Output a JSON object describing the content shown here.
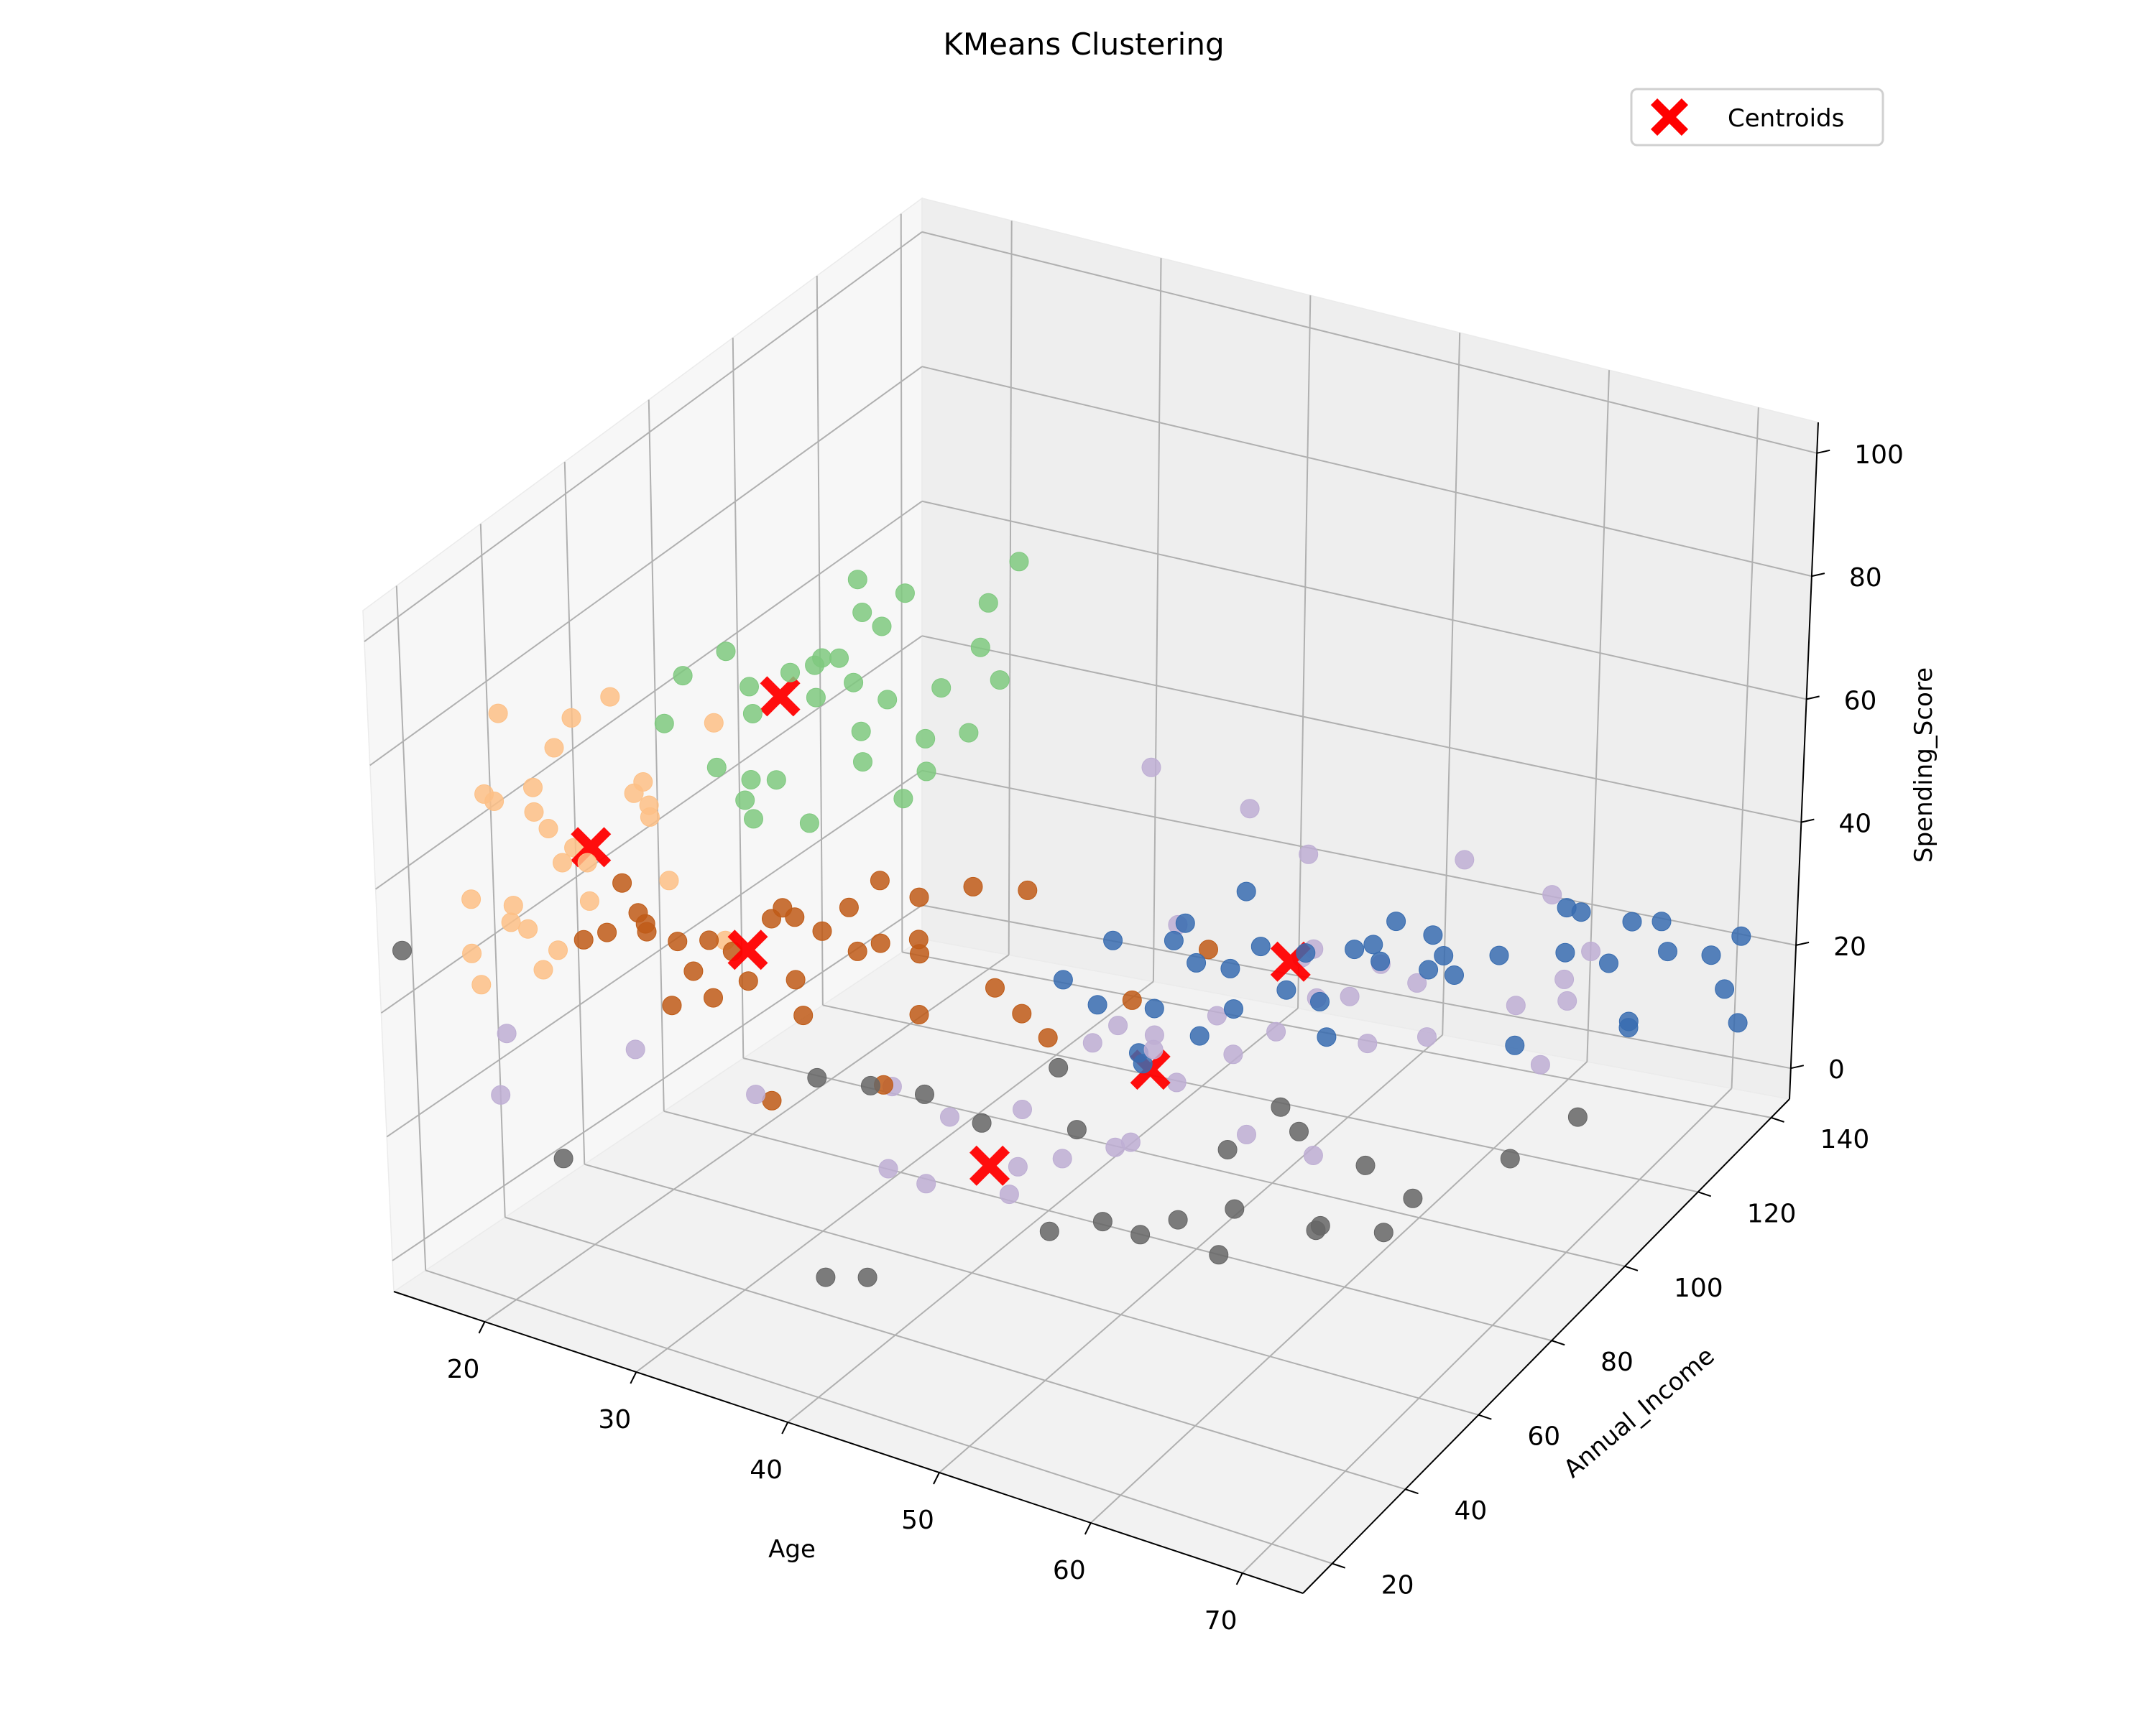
{
  "chart_data": {
    "type": "scatter",
    "title": "KMeans Clustering",
    "xlabel": "Age",
    "ylabel": "Annual_Income",
    "zlabel": "Spending_Score",
    "xlim": [
      14,
      74
    ],
    "ylim": [
      12,
      145
    ],
    "zlim": [
      -5,
      105
    ],
    "xticks": [
      "20",
      "30",
      "40",
      "50",
      "60",
      "70"
    ],
    "yticks": [
      "20",
      "40",
      "60",
      "80",
      "100",
      "120",
      "140"
    ],
    "zticks": [
      "0",
      "20",
      "40",
      "60",
      "80",
      "100"
    ],
    "grid": true,
    "legend": {
      "position": "top-right",
      "entries": [
        "Centroids"
      ]
    },
    "centroid_color": "#ff0000",
    "series": [
      {
        "color": "#7fc97f",
        "points": [
          [
            31,
            40,
            78
          ],
          [
            27,
            39,
            92
          ],
          [
            29,
            42,
            96
          ],
          [
            31,
            56,
            88
          ],
          [
            33,
            65,
            91
          ],
          [
            36,
            78,
            83
          ],
          [
            28,
            78,
            88
          ],
          [
            38,
            80,
            97
          ],
          [
            30,
            60,
            80
          ],
          [
            32,
            70,
            76
          ],
          [
            35,
            72,
            79
          ],
          [
            26,
            38,
            84
          ],
          [
            29,
            46,
            70
          ],
          [
            33,
            60,
            72
          ],
          [
            36,
            75,
            71
          ],
          [
            30,
            71,
            69
          ],
          [
            32,
            64,
            93
          ],
          [
            27,
            55,
            82
          ],
          [
            34,
            67,
            96
          ],
          [
            29,
            73,
            75
          ],
          [
            30,
            58,
            61
          ],
          [
            35,
            68,
            73
          ],
          [
            31,
            62,
            86
          ],
          [
            28,
            52,
            80
          ],
          [
            37,
            79,
            78
          ],
          [
            33,
            70,
            61
          ],
          [
            28,
            43,
            76
          ],
          [
            32,
            54,
            91
          ],
          [
            34,
            72,
            65
          ],
          [
            30,
            50,
            72
          ],
          [
            36,
            80,
            89
          ],
          [
            31,
            50,
            90
          ],
          [
            29,
            48,
            66
          ]
        ]
      },
      {
        "color": "#beaed4",
        "points": [
          [
            43,
            120,
            40
          ],
          [
            49,
            115,
            16
          ],
          [
            47,
            120,
            35
          ],
          [
            42,
            116,
            9
          ],
          [
            45,
            120,
            6
          ],
          [
            53,
            113,
            12
          ],
          [
            50,
            128,
            15
          ],
          [
            40,
            72,
            6
          ],
          [
            46,
            74,
            12
          ],
          [
            52,
            85,
            12
          ],
          [
            56,
            87,
            10
          ],
          [
            45,
            88,
            22
          ],
          [
            58,
            109,
            18
          ],
          [
            54,
            104,
            25
          ],
          [
            55,
            130,
            33
          ],
          [
            59,
            138,
            25
          ],
          [
            63,
            120,
            10
          ],
          [
            62,
            137,
            18
          ],
          [
            37,
            66,
            15
          ],
          [
            44,
            68,
            12
          ],
          [
            48,
            76,
            28
          ],
          [
            39,
            77,
            12
          ],
          [
            57,
            137,
            7
          ],
          [
            40,
            106,
            52
          ],
          [
            47,
            86,
            42
          ],
          [
            51,
            103,
            30
          ],
          [
            60,
            139,
            8
          ],
          [
            35,
            59,
            22
          ],
          [
            41,
            94,
            18
          ],
          [
            46,
            90,
            14
          ],
          [
            38,
            99,
            11
          ],
          [
            32,
            36,
            30
          ],
          [
            26,
            29,
            36
          ],
          [
            20,
            18,
            29
          ],
          [
            20,
            20,
            38
          ],
          [
            38,
            56,
            10
          ],
          [
            36,
            54,
            12
          ],
          [
            42,
            62,
            8
          ],
          [
            45,
            82,
            8
          ],
          [
            48,
            97,
            16
          ],
          [
            50,
            110,
            27
          ],
          [
            55,
            118,
            20
          ],
          [
            60,
            138,
            12
          ]
        ]
      },
      {
        "color": "#fdc086",
        "points": [
          [
            18,
            24,
            73
          ],
          [
            20,
            19,
            76
          ],
          [
            21,
            30,
            80
          ],
          [
            21,
            19,
            60
          ],
          [
            23,
            22,
            53
          ],
          [
            24,
            26,
            66
          ],
          [
            18,
            20,
            58
          ],
          [
            22,
            40,
            84
          ],
          [
            23,
            30,
            57
          ],
          [
            25,
            34,
            74
          ],
          [
            26,
            34,
            71
          ],
          [
            19,
            18,
            46
          ],
          [
            20,
            22,
            55
          ],
          [
            22,
            22,
            49
          ],
          [
            26,
            50,
            78
          ],
          [
            21,
            28,
            68
          ],
          [
            19,
            32,
            71
          ],
          [
            20,
            38,
            80
          ],
          [
            24,
            40,
            72
          ],
          [
            22,
            21,
            75
          ],
          [
            24,
            20,
            69
          ],
          [
            23,
            45,
            65
          ],
          [
            27,
            48,
            45
          ],
          [
            25,
            42,
            56
          ],
          [
            20,
            26,
            52
          ],
          [
            21,
            34,
            62
          ],
          [
            18,
            28,
            84
          ],
          [
            19,
            16,
            52
          ]
        ]
      },
      {
        "color": "#386cb0",
        "points": [
          [
            47,
            85,
            40
          ],
          [
            48,
            87,
            36
          ],
          [
            49,
            92,
            33
          ],
          [
            50,
            96,
            35
          ],
          [
            52,
            100,
            33
          ],
          [
            54,
            105,
            32
          ],
          [
            55,
            108,
            29
          ],
          [
            56,
            108,
            36
          ],
          [
            57,
            114,
            31
          ],
          [
            57,
            113,
            26
          ],
          [
            58,
            116,
            24
          ],
          [
            60,
            120,
            26
          ],
          [
            62,
            130,
            29
          ],
          [
            62,
            134,
            26
          ],
          [
            64,
            140,
            22
          ],
          [
            66,
            140,
            23
          ],
          [
            66,
            142,
            17
          ],
          [
            68,
            146,
            15
          ],
          [
            70,
            146,
            19
          ],
          [
            69,
            146,
            10
          ],
          [
            63,
            138,
            16
          ],
          [
            64,
            140,
            5
          ],
          [
            59,
            129,
            6
          ],
          [
            53,
            102,
            19
          ],
          [
            52,
            104,
            23
          ],
          [
            51,
            99,
            27
          ],
          [
            49,
            93,
            26
          ],
          [
            47,
            92,
            21
          ],
          [
            46,
            84,
            29
          ],
          [
            46,
            80,
            24
          ],
          [
            45,
            85,
            19
          ],
          [
            44,
            77,
            32
          ],
          [
            43,
            72,
            38
          ],
          [
            45,
            77,
            43
          ],
          [
            48,
            84,
            44
          ],
          [
            50,
            92,
            46
          ],
          [
            54,
            110,
            30
          ],
          [
            61,
            134,
            19
          ],
          [
            64,
            140,
            6
          ],
          [
            70,
            146,
            5
          ],
          [
            57,
            117,
            26
          ]
        ]
      },
      {
        "color": "#bf5b17",
        "points": [
          [
            23,
            38,
            56
          ],
          [
            26,
            40,
            48
          ],
          [
            24,
            38,
            52
          ],
          [
            25,
            36,
            52
          ],
          [
            23,
            34,
            50
          ],
          [
            24,
            40,
            48
          ],
          [
            27,
            44,
            47
          ],
          [
            28,
            46,
            45
          ],
          [
            29,
            52,
            48
          ],
          [
            30,
            51,
            51
          ],
          [
            29,
            46,
            41
          ],
          [
            27,
            40,
            44
          ],
          [
            30,
            54,
            48
          ],
          [
            32,
            60,
            48
          ],
          [
            33,
            64,
            51
          ],
          [
            34,
            70,
            46
          ],
          [
            35,
            66,
            42
          ],
          [
            36,
            76,
            46
          ],
          [
            37,
            86,
            41
          ],
          [
            30,
            54,
            38
          ],
          [
            28,
            41,
            40
          ],
          [
            31,
            57,
            45
          ],
          [
            32,
            62,
            40
          ],
          [
            34,
            70,
            37
          ],
          [
            33,
            64,
            41
          ],
          [
            31,
            52,
            34
          ],
          [
            32,
            40,
            27
          ],
          [
            39,
            70,
            35
          ],
          [
            40,
            73,
            30
          ],
          [
            36,
            53,
            26
          ],
          [
            44,
            86,
            28
          ],
          [
            46,
            98,
            31
          ],
          [
            42,
            72,
            28
          ],
          [
            25,
            42,
            36
          ],
          [
            22,
            32,
            49
          ],
          [
            35,
            66,
            30
          ]
        ]
      },
      {
        "color": "#666666",
        "points": [
          [
            15,
            14,
            50
          ],
          [
            24,
            18,
            22
          ],
          [
            35,
            40,
            33
          ],
          [
            38,
            42,
            33
          ],
          [
            40,
            48,
            30
          ],
          [
            43,
            51,
            26
          ],
          [
            47,
            60,
            23
          ],
          [
            54,
            72,
            18
          ],
          [
            57,
            79,
            19
          ],
          [
            60,
            85,
            12
          ],
          [
            70,
            102,
            16
          ],
          [
            67,
            96,
            11
          ],
          [
            62,
            90,
            5
          ],
          [
            58,
            80,
            3
          ],
          [
            54,
            70,
            2
          ],
          [
            52,
            67,
            8
          ],
          [
            49,
            59,
            10
          ],
          [
            40,
            33,
            8
          ],
          [
            38,
            30,
            8
          ],
          [
            49,
            45,
            16
          ],
          [
            53,
            53,
            14
          ],
          [
            57,
            62,
            16
          ],
          [
            61,
            69,
            12
          ],
          [
            64,
            74,
            10
          ],
          [
            45,
            63,
            30
          ],
          [
            55,
            82,
            20
          ]
        ]
      }
    ],
    "centroids": [
      [
        29,
        55,
        82
      ],
      [
        45,
        87,
        17
      ],
      [
        24,
        27,
        68
      ],
      [
        51,
        100,
        31
      ],
      [
        29,
        46,
        46
      ],
      [
        43,
        53,
        18
      ]
    ]
  }
}
